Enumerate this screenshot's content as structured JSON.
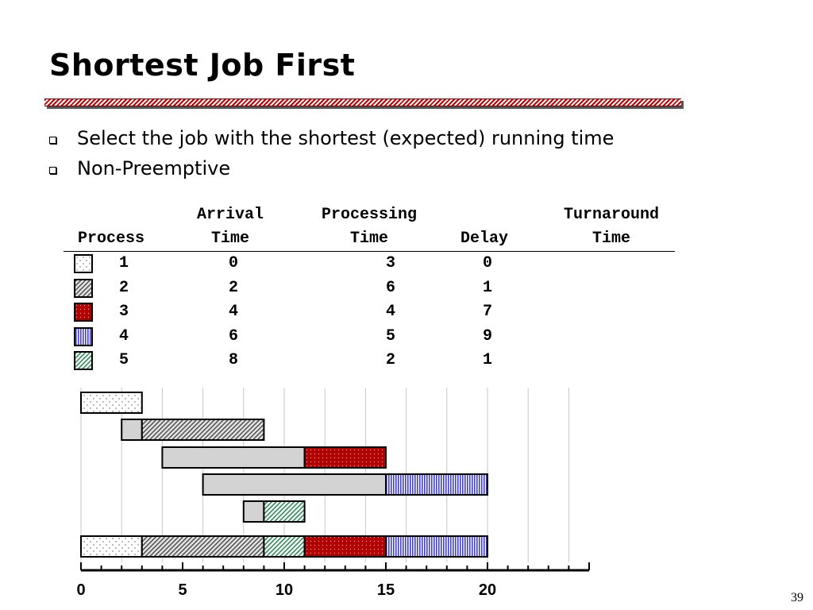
{
  "slide": {
    "title": "Shortest Job First",
    "bullets": [
      "Select the job with the shortest (expected) running time",
      "Non-Preemptive"
    ],
    "page_number": "39"
  },
  "table": {
    "headers": {
      "process": "Process",
      "arrival_line1": "Arrival",
      "arrival_line2": "Time",
      "processing_line1": "Processing",
      "processing_line2": "Time",
      "delay": "Delay",
      "turnaround_line1": "Turnaround",
      "turnaround_line2": "Time"
    },
    "rows": [
      {
        "process": "1",
        "arrival": "0",
        "processing": "3",
        "delay": "0",
        "pattern": "dots"
      },
      {
        "process": "2",
        "arrival": "2",
        "processing": "6",
        "delay": "1",
        "pattern": "gray-hatch"
      },
      {
        "process": "3",
        "arrival": "4",
        "processing": "4",
        "delay": "7",
        "pattern": "red-dots"
      },
      {
        "process": "4",
        "arrival": "6",
        "processing": "5",
        "delay": "9",
        "pattern": "blue-vlines"
      },
      {
        "process": "5",
        "arrival": "8",
        "processing": "2",
        "delay": "1",
        "pattern": "green-hatch"
      }
    ]
  },
  "chart_data": {
    "type": "gantt",
    "x_ticks": [
      0,
      5,
      10,
      15,
      20
    ],
    "x_range": [
      0,
      25
    ],
    "grid": true,
    "jobs": [
      {
        "process": "1",
        "arrival": 0,
        "start": 0,
        "end": 3,
        "pattern": "dots"
      },
      {
        "process": "2",
        "arrival": 2,
        "start": 3,
        "end": 9,
        "pattern": "gray-hatch"
      },
      {
        "process": "3",
        "arrival": 4,
        "start": 11,
        "end": 15,
        "pattern": "red-dots"
      },
      {
        "process": "4",
        "arrival": 6,
        "start": 15,
        "end": 20,
        "pattern": "blue-vlines"
      },
      {
        "process": "5",
        "arrival": 8,
        "start": 9,
        "end": 11,
        "pattern": "green-hatch"
      }
    ],
    "timeline": [
      {
        "process": "1",
        "start": 0,
        "end": 3
      },
      {
        "process": "2",
        "start": 3,
        "end": 9
      },
      {
        "process": "5",
        "start": 9,
        "end": 11
      },
      {
        "process": "3",
        "start": 11,
        "end": 15
      },
      {
        "process": "4",
        "start": 15,
        "end": 20
      }
    ],
    "colors": {
      "wait": "#d3d3d3",
      "red": "#b00000",
      "blue": "#5050e0",
      "green": "#2e8b57",
      "gray": "#909090"
    }
  }
}
